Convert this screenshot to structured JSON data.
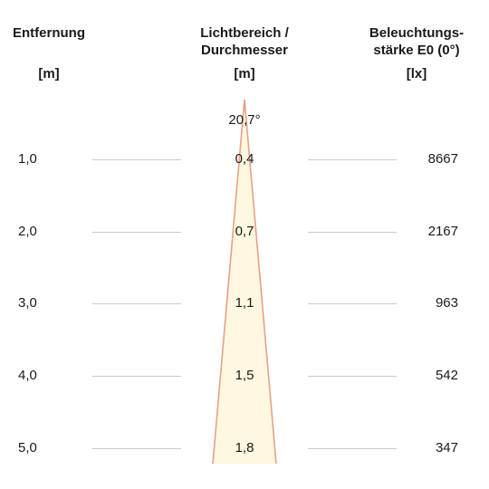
{
  "headers": {
    "distance": {
      "title": "Entfernung",
      "unit": "[m]"
    },
    "beam": {
      "title_line1": "Lichtbereich /",
      "title_line2": "Durchmesser",
      "unit": "[m]"
    },
    "illuminance": {
      "title_line1": "Beleuchtungs-",
      "title_line2": "stärke E0 (0°)",
      "unit": "[lx]"
    }
  },
  "beam_angle": "20,7°",
  "rows": [
    {
      "distance": "1,0",
      "diameter": "0,4",
      "lux": "8667"
    },
    {
      "distance": "2,0",
      "diameter": "0,7",
      "lux": "2167"
    },
    {
      "distance": "3,0",
      "diameter": "1,1",
      "lux": "963"
    },
    {
      "distance": "4,0",
      "diameter": "1,5",
      "lux": "542"
    },
    {
      "distance": "5,0",
      "diameter": "1,8",
      "lux": "347"
    }
  ],
  "colors": {
    "cone_fill": "#fdf8df",
    "cone_outline": "#e8a089",
    "rule": "#c9c9c9"
  }
}
